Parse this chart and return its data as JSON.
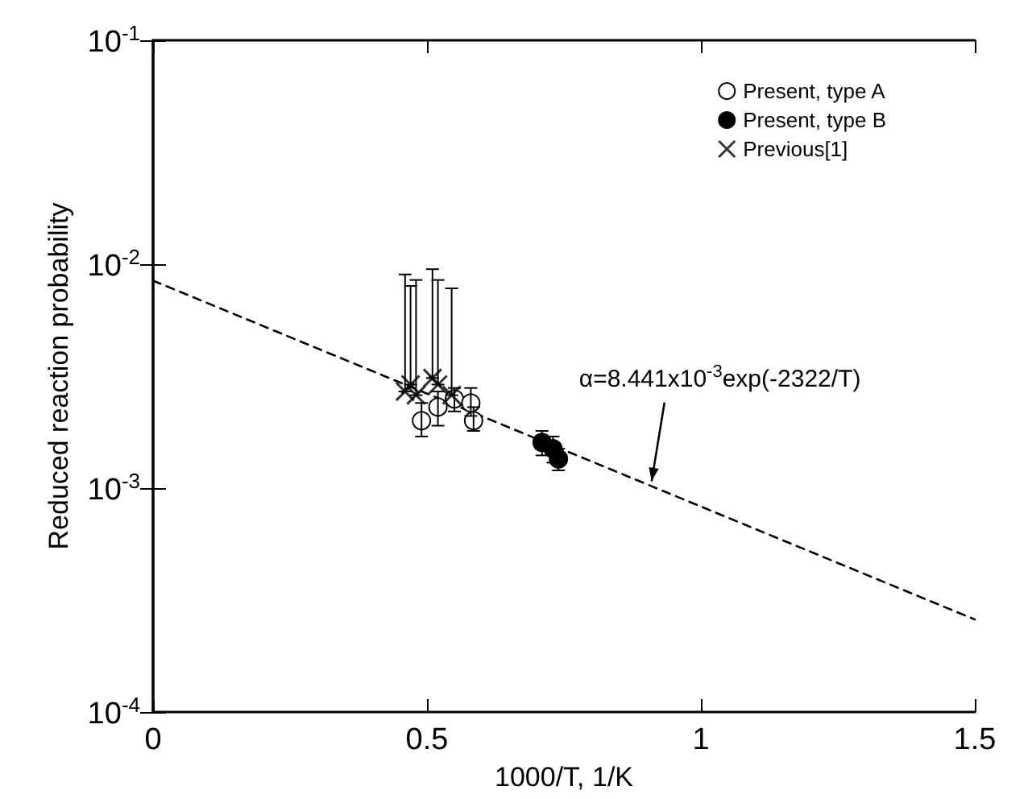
{
  "chart_data": {
    "type": "scatter",
    "xlabel": "1000/T, 1/K",
    "ylabel": "Reduced reaction probability",
    "xlim": [
      0,
      1.5
    ],
    "xticks": [
      0,
      0.5,
      1,
      1.5
    ],
    "ylim": [
      0.0001,
      0.1
    ],
    "log": "y",
    "yticks": [
      {
        "value": 0.0001,
        "label": "10$^{-4}$"
      },
      {
        "value": 0.001,
        "label": "10$^{-3}$"
      },
      {
        "value": 0.01,
        "label": "10$^{-2}$"
      },
      {
        "value": 0.1,
        "label": "10$^{-1}$"
      }
    ],
    "grid": false,
    "legend": "top right",
    "series": [
      {
        "name": "Present, type A",
        "marker": "circle",
        "color": "#ffffff",
        "x": [
          0.49,
          0.52,
          0.55,
          0.58,
          0.585
        ],
        "values": [
          0.002,
          0.0023,
          0.0025,
          0.0024,
          0.002
        ],
        "errors": [
          [
            0.0017,
            0.0024
          ],
          [
            0.0019,
            0.0027
          ],
          [
            0.0022,
            0.0028
          ],
          [
            0.0021,
            0.0028
          ],
          [
            0.0018,
            0.0023
          ]
        ]
      },
      {
        "name": "Present, type B",
        "marker": "circle",
        "color": "#000000",
        "x": [
          0.71,
          0.73,
          0.74
        ],
        "values": [
          0.0016,
          0.0015,
          0.00135
        ],
        "errors": [
          [
            0.0014,
            0.0018
          ],
          [
            0.0013,
            0.0017
          ],
          [
            0.0012,
            0.0015
          ]
        ]
      },
      {
        "name": "Previous[1]",
        "marker": "cross",
        "color": "#000000",
        "x": [
          0.46,
          0.47,
          0.48,
          0.51,
          0.52,
          0.545
        ],
        "values": [
          0.0027,
          0.0029,
          0.0026,
          0.0031,
          0.0029,
          0.0026
        ],
        "errors": [
          [
            0.0027,
            0.009
          ],
          [
            0.0029,
            0.008
          ],
          [
            0.0026,
            0.0085
          ],
          [
            0.0031,
            0.0095
          ],
          [
            0.0029,
            0.0085
          ],
          [
            0.0026,
            0.0078
          ]
        ]
      },
      {
        "type": "line",
        "marker": "none",
        "line_style": "dashed",
        "color": "#000000",
        "x": [
          0,
          1.5
        ],
        "values": [
          0.008441,
          0.000259
        ]
      }
    ],
    "annotations": [
      {
        "text": "α=8.441x10$^{-3}$exp(-2322/T)",
        "x": 0.91,
        "y": 0.00102
      }
    ]
  }
}
